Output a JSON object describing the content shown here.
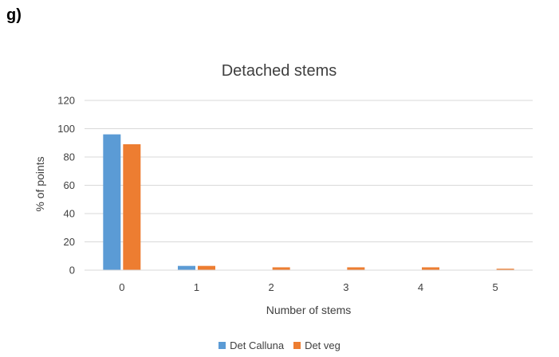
{
  "panel_label": "g)",
  "chart_data": {
    "type": "bar",
    "title": "Detached stems",
    "xlabel": "Number of stems",
    "ylabel": "% of points",
    "categories": [
      "0",
      "1",
      "2",
      "3",
      "4",
      "5"
    ],
    "ylim": [
      0,
      120
    ],
    "yticks": [
      0,
      20,
      40,
      60,
      80,
      100,
      120
    ],
    "grid": true,
    "legend_position": "bottom",
    "series": [
      {
        "name": "Det Calluna",
        "color": "#5B9BD5",
        "values": [
          96,
          3,
          0,
          0,
          0,
          0
        ]
      },
      {
        "name": "Det veg",
        "color": "#ED7D31",
        "values": [
          89,
          3,
          2,
          2,
          2,
          1
        ]
      }
    ]
  }
}
